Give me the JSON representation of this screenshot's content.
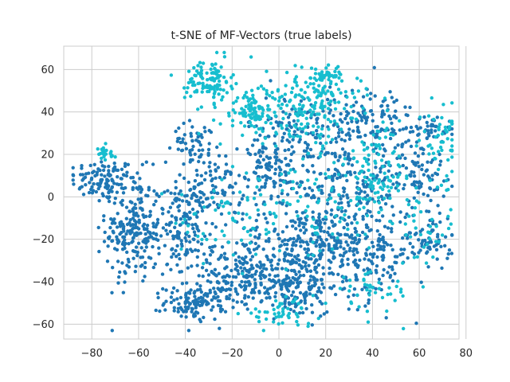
{
  "chart_data": {
    "type": "scatter",
    "title": "t-SNE of MF-Vectors (true labels)",
    "xlabel": "",
    "ylabel": "",
    "xlim": [
      -92,
      77
    ],
    "ylim": [
      -67,
      71
    ],
    "x_ticks": [
      -80,
      -60,
      -40,
      -20,
      0,
      20,
      40,
      60,
      80
    ],
    "y_ticks": [
      -60,
      -40,
      -20,
      0,
      20,
      40,
      60
    ],
    "x_tick_labels": [
      "−80",
      "−60",
      "−40",
      "−20",
      "0",
      "20",
      "40",
      "60",
      "80"
    ],
    "y_tick_labels": [
      "−60",
      "−40",
      "−20",
      "0",
      "20",
      "40",
      "60"
    ],
    "grid": true,
    "legend": "none",
    "colors": {
      "class_a": "#1f77b4",
      "class_b": "#17becf"
    },
    "series": [
      {
        "color_key": "class_a",
        "clusters": [
          {
            "cx": -75,
            "cy": 8,
            "sx": 7,
            "sy": 5,
            "n": 110
          },
          {
            "cx": -62,
            "cy": -15,
            "sx": 6,
            "sy": 13,
            "n": 230
          },
          {
            "cx": -40,
            "cy": -15,
            "sx": 6,
            "sy": 12,
            "n": 170
          },
          {
            "cx": -27,
            "cy": 5,
            "sx": 6,
            "sy": 7,
            "n": 70
          },
          {
            "cx": -35,
            "cy": -50,
            "sx": 7,
            "sy": 4,
            "n": 120
          },
          {
            "cx": -18,
            "cy": -38,
            "sx": 10,
            "sy": 6,
            "n": 130
          },
          {
            "cx": 5,
            "cy": -42,
            "sx": 10,
            "sy": 7,
            "n": 180
          },
          {
            "cx": 10,
            "cy": -22,
            "sx": 14,
            "sy": 9,
            "n": 260
          },
          {
            "cx": 38,
            "cy": -25,
            "sx": 10,
            "sy": 12,
            "n": 200
          },
          {
            "cx": 65,
            "cy": -20,
            "sx": 5,
            "sy": 6,
            "n": 60
          },
          {
            "cx": 30,
            "cy": 5,
            "sx": 12,
            "sy": 10,
            "n": 170
          },
          {
            "cx": 60,
            "cy": 12,
            "sx": 6,
            "sy": 8,
            "n": 80
          },
          {
            "cx": 40,
            "cy": 35,
            "sx": 9,
            "sy": 9,
            "n": 120
          },
          {
            "cx": 10,
            "cy": 30,
            "sx": 12,
            "sy": 9,
            "n": 150
          },
          {
            "cx": -5,
            "cy": 10,
            "sx": 7,
            "sy": 8,
            "n": 90
          },
          {
            "cx": -35,
            "cy": 25,
            "sx": 5,
            "sy": 5,
            "n": 60
          },
          {
            "cx": 65,
            "cy": 32,
            "sx": 5,
            "sy": 3,
            "n": 40
          }
        ]
      },
      {
        "color_key": "class_b",
        "clusters": [
          {
            "cx": -30,
            "cy": 55,
            "sx": 5,
            "sy": 5,
            "n": 110
          },
          {
            "cx": -10,
            "cy": 40,
            "sx": 8,
            "sy": 6,
            "n": 120
          },
          {
            "cx": 15,
            "cy": 45,
            "sx": 10,
            "sy": 8,
            "n": 150
          },
          {
            "cx": 20,
            "cy": 57,
            "sx": 6,
            "sy": 2,
            "n": 40
          },
          {
            "cx": -75,
            "cy": 20,
            "sx": 3,
            "sy": 2,
            "n": 25
          },
          {
            "cx": 45,
            "cy": 15,
            "sx": 8,
            "sy": 10,
            "n": 80
          },
          {
            "cx": 70,
            "cy": 25,
            "sx": 4,
            "sy": 10,
            "n": 50
          },
          {
            "cx": 0,
            "cy": -55,
            "sx": 8,
            "sy": 3,
            "n": 50
          },
          {
            "cx": 40,
            "cy": -45,
            "sx": 8,
            "sy": 5,
            "n": 40
          },
          {
            "cx": 20,
            "cy": 0,
            "sx": 15,
            "sy": 15,
            "n": 120
          },
          {
            "cx": -20,
            "cy": -10,
            "sx": 12,
            "sy": 10,
            "n": 60
          },
          {
            "cx": 60,
            "cy": -15,
            "sx": 8,
            "sy": 8,
            "n": 40
          }
        ]
      }
    ]
  }
}
